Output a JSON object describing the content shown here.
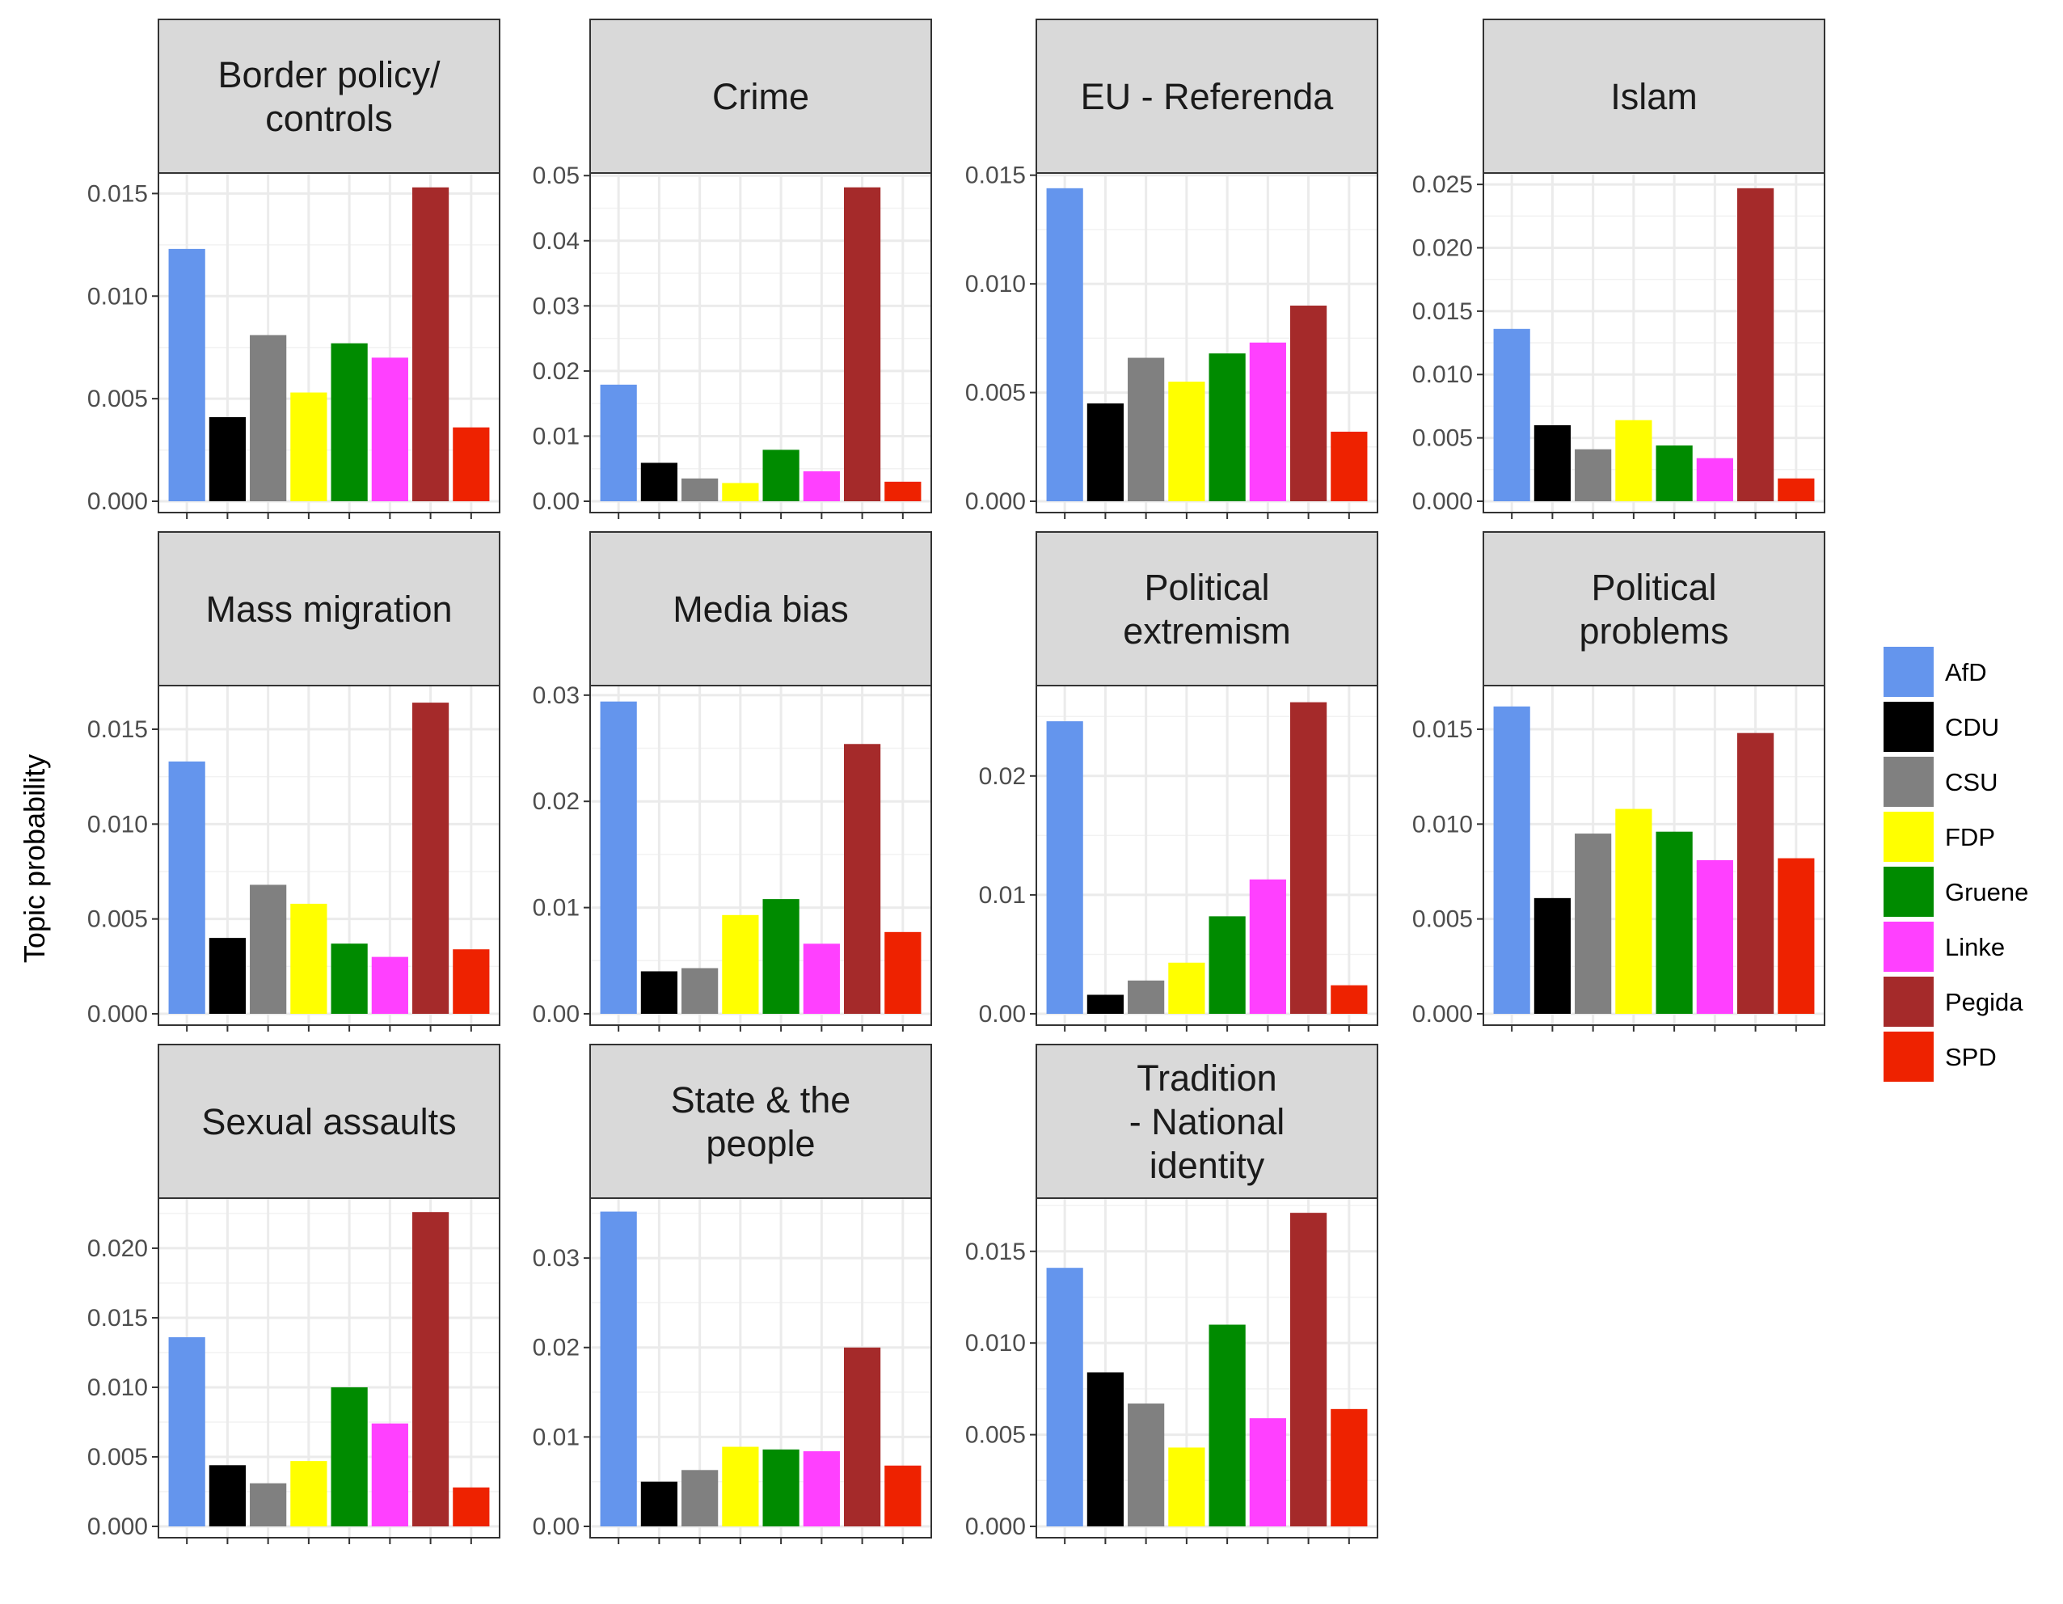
{
  "chart_data": {
    "type": "bar",
    "ylabel": "Topic probability",
    "categories": [
      "AfD",
      "CDU",
      "CSU",
      "FDP",
      "Gruene",
      "Linke",
      "Pegida",
      "SPD"
    ],
    "colors": {
      "AfD": "#6495ed",
      "CDU": "#000000",
      "CSU": "#808080",
      "FDP": "#ffff00",
      "Gruene": "#008b00",
      "Linke": "#ff40ff",
      "Pegida": "#a52a2a",
      "SPD": "#ee2200"
    },
    "legend": {
      "position": "right",
      "items": [
        "AfD",
        "CDU",
        "CSU",
        "FDP",
        "Gruene",
        "Linke",
        "Pegida",
        "SPD"
      ]
    },
    "panels": [
      {
        "title": [
          "Border policy/",
          "controls"
        ],
        "ylim": [
          0,
          0.016
        ],
        "yticks": [
          0,
          0.005,
          0.01,
          0.015
        ],
        "ytick_labels": [
          "0.000",
          "0.005",
          "0.010",
          "0.015"
        ],
        "values": [
          0.0123,
          0.0041,
          0.0081,
          0.0053,
          0.0077,
          0.007,
          0.0153,
          0.0036
        ]
      },
      {
        "title": [
          "Crime"
        ],
        "ylim": [
          0,
          0.0504
        ],
        "yticks": [
          0,
          0.01,
          0.02,
          0.03,
          0.04,
          0.05
        ],
        "ytick_labels": [
          "0.00",
          "0.01",
          "0.02",
          "0.03",
          "0.04",
          "0.05"
        ],
        "values": [
          0.0179,
          0.0059,
          0.0035,
          0.0028,
          0.0079,
          0.0046,
          0.0482,
          0.003
        ]
      },
      {
        "title": [
          "EU - Referenda"
        ],
        "ylim": [
          0,
          0.0151
        ],
        "yticks": [
          0,
          0.005,
          0.01,
          0.015
        ],
        "ytick_labels": [
          "0.000",
          "0.005",
          "0.010",
          "0.015"
        ],
        "values": [
          0.0144,
          0.0045,
          0.0066,
          0.0055,
          0.0068,
          0.0073,
          0.009,
          0.0032
        ]
      },
      {
        "title": [
          "Islam"
        ],
        "ylim": [
          0,
          0.0259
        ],
        "yticks": [
          0,
          0.005,
          0.01,
          0.015,
          0.02,
          0.025
        ],
        "ytick_labels": [
          "0.000",
          "0.005",
          "0.010",
          "0.015",
          "0.020",
          "0.025"
        ],
        "values": [
          0.0136,
          0.006,
          0.0041,
          0.0064,
          0.0044,
          0.0034,
          0.0247,
          0.0018
        ]
      },
      {
        "title": [
          "Mass migration"
        ],
        "ylim": [
          0,
          0.0173
        ],
        "yticks": [
          0,
          0.005,
          0.01,
          0.015
        ],
        "ytick_labels": [
          "0.000",
          "0.005",
          "0.010",
          "0.015"
        ],
        "values": [
          0.0133,
          0.004,
          0.0068,
          0.0058,
          0.0037,
          0.003,
          0.0164,
          0.0034
        ]
      },
      {
        "title": [
          "Media bias"
        ],
        "ylim": [
          0,
          0.0309
        ],
        "yticks": [
          0,
          0.01,
          0.02,
          0.03
        ],
        "ytick_labels": [
          "0.00",
          "0.01",
          "0.02",
          "0.03"
        ],
        "values": [
          0.0294,
          0.004,
          0.0043,
          0.0093,
          0.0108,
          0.0066,
          0.0254,
          0.0077
        ]
      },
      {
        "title": [
          "Political",
          "extremism"
        ],
        "ylim": [
          0,
          0.0276
        ],
        "yticks": [
          0,
          0.01,
          0.02
        ],
        "ytick_labels": [
          "0.00",
          "0.01",
          "0.02"
        ],
        "values": [
          0.0246,
          0.0016,
          0.0028,
          0.0043,
          0.0082,
          0.0113,
          0.0262,
          0.0024
        ]
      },
      {
        "title": [
          "Political",
          "problems"
        ],
        "ylim": [
          0,
          0.0173
        ],
        "yticks": [
          0,
          0.005,
          0.01,
          0.015
        ],
        "ytick_labels": [
          "0.000",
          "0.005",
          "0.010",
          "0.015"
        ],
        "values": [
          0.0162,
          0.0061,
          0.0095,
          0.0108,
          0.0096,
          0.0081,
          0.0148,
          0.0082
        ]
      },
      {
        "title": [
          "Sexual assaults"
        ],
        "ylim": [
          0,
          0.0236
        ],
        "yticks": [
          0,
          0.005,
          0.01,
          0.015,
          0.02
        ],
        "ytick_labels": [
          "0.000",
          "0.005",
          "0.010",
          "0.015",
          "0.020"
        ],
        "values": [
          0.0136,
          0.0044,
          0.0031,
          0.0047,
          0.01,
          0.0074,
          0.0226,
          0.0028
        ]
      },
      {
        "title": [
          "State & the",
          "people"
        ],
        "ylim": [
          0,
          0.0367
        ],
        "yticks": [
          0,
          0.01,
          0.02,
          0.03
        ],
        "ytick_labels": [
          "0.00",
          "0.01",
          "0.02",
          "0.03"
        ],
        "values": [
          0.0352,
          0.005,
          0.0063,
          0.0089,
          0.0086,
          0.0084,
          0.02,
          0.0068
        ]
      },
      {
        "title": [
          "Tradition",
          "- National",
          "identity"
        ],
        "ylim": [
          0,
          0.0179
        ],
        "yticks": [
          0,
          0.005,
          0.01,
          0.015
        ],
        "ytick_labels": [
          "0.000",
          "0.005",
          "0.010",
          "0.015"
        ],
        "values": [
          0.0141,
          0.0084,
          0.0067,
          0.0043,
          0.011,
          0.0059,
          0.0171,
          0.0064
        ]
      }
    ]
  }
}
